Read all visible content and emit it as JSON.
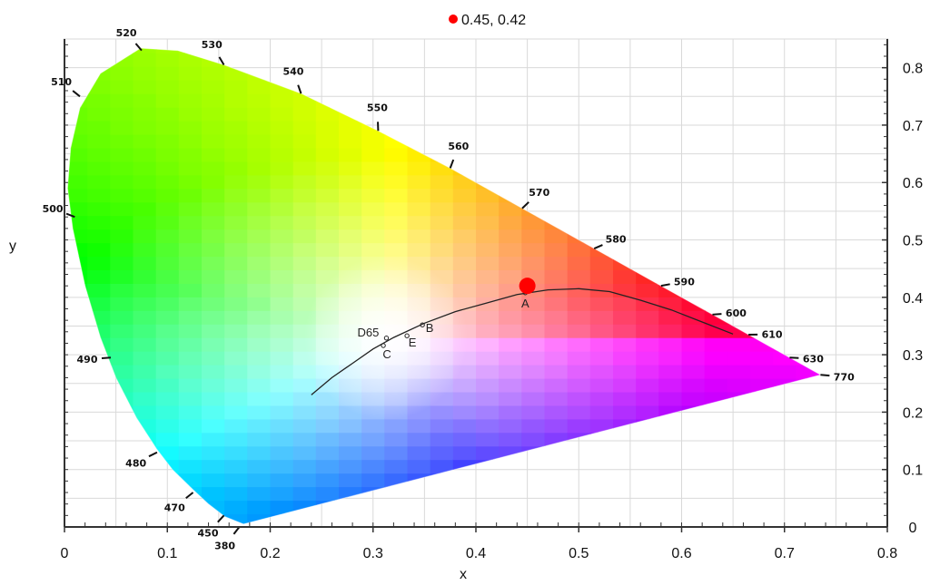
{
  "chart_data": {
    "type": "scatter",
    "title": "",
    "xlabel": "x",
    "ylabel": "y",
    "xlim": [
      0,
      0.8
    ],
    "ylim": [
      0,
      0.85
    ],
    "x_ticks": [
      "0",
      "0.1",
      "0.2",
      "0.3",
      "0.4",
      "0.5",
      "0.6",
      "0.7",
      "0.8"
    ],
    "y_ticks": [
      "0",
      "0.1",
      "0.2",
      "0.3",
      "0.4",
      "0.5",
      "0.6",
      "0.7",
      "0.8"
    ],
    "grid": true,
    "background": "CIE 1931 chromaticity diagram",
    "highlight_point": {
      "x": 0.45,
      "y": 0.42,
      "label": "0.45, 0.42",
      "color": "#ff0000"
    },
    "spectral_locus_labels": [
      {
        "nm": "380",
        "x": 0.17,
        "y": 0.0
      },
      {
        "nm": "450",
        "x": 0.155,
        "y": 0.02
      },
      {
        "nm": "470",
        "x": 0.125,
        "y": 0.06
      },
      {
        "nm": "480",
        "x": 0.09,
        "y": 0.13
      },
      {
        "nm": "490",
        "x": 0.045,
        "y": 0.295
      },
      {
        "nm": "500",
        "x": 0.01,
        "y": 0.54
      },
      {
        "nm": "510",
        "x": 0.015,
        "y": 0.75
      },
      {
        "nm": "520",
        "x": 0.075,
        "y": 0.83
      },
      {
        "nm": "530",
        "x": 0.155,
        "y": 0.805
      },
      {
        "nm": "540",
        "x": 0.23,
        "y": 0.755
      },
      {
        "nm": "550",
        "x": 0.305,
        "y": 0.69
      },
      {
        "nm": "560",
        "x": 0.375,
        "y": 0.625
      },
      {
        "nm": "570",
        "x": 0.445,
        "y": 0.555
      },
      {
        "nm": "580",
        "x": 0.515,
        "y": 0.485
      },
      {
        "nm": "590",
        "x": 0.58,
        "y": 0.42
      },
      {
        "nm": "600",
        "x": 0.63,
        "y": 0.37
      },
      {
        "nm": "610",
        "x": 0.665,
        "y": 0.335
      },
      {
        "nm": "630",
        "x": 0.705,
        "y": 0.295
      },
      {
        "nm": "770",
        "x": 0.735,
        "y": 0.265
      }
    ],
    "white_points": [
      {
        "name": "A",
        "x": 0.448,
        "y": 0.408
      },
      {
        "name": "B",
        "x": 0.348,
        "y": 0.352
      },
      {
        "name": "E",
        "x": 0.333,
        "y": 0.333
      },
      {
        "name": "C",
        "x": 0.31,
        "y": 0.316
      },
      {
        "name": "D65",
        "x": 0.313,
        "y": 0.329
      }
    ],
    "planckian_locus": [
      [
        0.24,
        0.23
      ],
      [
        0.26,
        0.26
      ],
      [
        0.28,
        0.285
      ],
      [
        0.3,
        0.31
      ],
      [
        0.32,
        0.33
      ],
      [
        0.35,
        0.355
      ],
      [
        0.38,
        0.375
      ],
      [
        0.41,
        0.39
      ],
      [
        0.44,
        0.405
      ],
      [
        0.47,
        0.413
      ],
      [
        0.5,
        0.415
      ],
      [
        0.53,
        0.41
      ],
      [
        0.56,
        0.395
      ],
      [
        0.59,
        0.378
      ],
      [
        0.62,
        0.357
      ],
      [
        0.65,
        0.336
      ]
    ]
  }
}
